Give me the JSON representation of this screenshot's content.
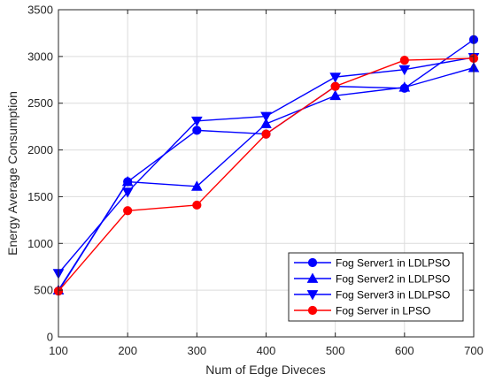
{
  "chart_data": {
    "type": "line",
    "xlabel": "Num of Edge Diveces",
    "ylabel": "Energy Average Consumption",
    "x": [
      100,
      200,
      300,
      400,
      500,
      600,
      700
    ],
    "xlim": [
      100,
      700
    ],
    "ylim": [
      0,
      3500
    ],
    "xticks": [
      "100",
      "200",
      "300",
      "400",
      "500",
      "600",
      "700"
    ],
    "yticks": [
      "0",
      "500",
      "1000",
      "1500",
      "2000",
      "2500",
      "3000",
      "3500"
    ],
    "grid": true,
    "legend_position": "bottom-right",
    "series": [
      {
        "name": "Fog Server1 in LDLPSO",
        "marker": "circle",
        "color": "#0000ff",
        "values": [
          490,
          1660,
          2210,
          2170,
          2680,
          2660,
          3180
        ]
      },
      {
        "name": "Fog Server2 in LDLPSO",
        "marker": "triangle-up",
        "color": "#0000ff",
        "values": [
          500,
          1660,
          1610,
          2280,
          2580,
          2670,
          2880
        ]
      },
      {
        "name": "Fog Server3 in LDLPSO",
        "marker": "triangle-down",
        "color": "#0000ff",
        "values": [
          680,
          1550,
          2310,
          2360,
          2780,
          2860,
          2990
        ]
      },
      {
        "name": "Fog Server in LPSO",
        "marker": "circle",
        "color": "#ff0000",
        "values": [
          490,
          1350,
          1410,
          2170,
          2680,
          2960,
          2980
        ]
      }
    ]
  }
}
